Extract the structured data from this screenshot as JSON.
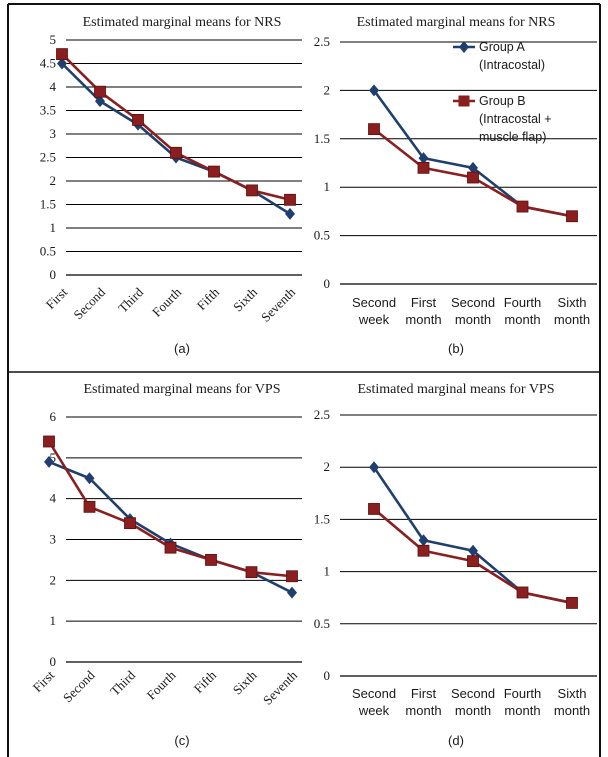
{
  "figure": {
    "panel_labels": [
      "(a)",
      "(b)",
      "(c)",
      "(d)"
    ]
  },
  "colors": {
    "group_a": "#1f3f6e",
    "group_b": "#8b1e1e",
    "grid": "#000000",
    "text": "#1a1a1a",
    "border": "#111111"
  },
  "chart_data": [
    {
      "type": "line",
      "title": "Estimated marginal means for NRS",
      "panel_label": "(a)",
      "categories": [
        "First",
        "Second",
        "Third",
        "Fourth",
        "Fifth",
        "Sixth",
        "Seventh"
      ],
      "series": [
        {
          "name": "Group A",
          "marker": "diamond",
          "values": [
            4.5,
            3.7,
            3.2,
            2.5,
            2.2,
            1.8,
            1.3
          ]
        },
        {
          "name": "Group B",
          "marker": "square",
          "values": [
            4.7,
            3.9,
            3.3,
            2.6,
            2.2,
            1.8,
            1.6
          ]
        }
      ],
      "ylim": [
        0,
        5
      ],
      "yticks": [
        "0",
        "0.5",
        "1",
        "1.5",
        "2",
        "2.5",
        "3",
        "3.5",
        "4",
        "4.5",
        "5"
      ],
      "grid": true,
      "legend": "none"
    },
    {
      "type": "line",
      "title": "Estimated marginal means for NRS",
      "panel_label": "(b)",
      "categories": [
        [
          "Second",
          "week"
        ],
        [
          "First",
          "month"
        ],
        [
          "Second",
          "month"
        ],
        [
          "Fourth",
          "month"
        ],
        [
          "Sixth",
          "month"
        ]
      ],
      "series": [
        {
          "name": "Group A",
          "marker": "diamond",
          "values": [
            2.0,
            1.3,
            1.2,
            0.8,
            0.7
          ]
        },
        {
          "name": "Group B",
          "marker": "square",
          "values": [
            1.6,
            1.2,
            1.1,
            0.8,
            0.7
          ]
        }
      ],
      "ylim": [
        0,
        2.5
      ],
      "yticks": [
        "0",
        "0.5",
        "1",
        "1.5",
        "2",
        "2.5"
      ],
      "grid": true,
      "legend": "top-right",
      "legend_entries": [
        {
          "series": 0,
          "lines": [
            "Group A",
            "(Intracostal)"
          ]
        },
        {
          "series": 1,
          "lines": [
            "Group B",
            "(Intracostal +",
            "muscle flap)"
          ]
        }
      ]
    },
    {
      "type": "line",
      "title": "Estimated marginal means for VPS",
      "panel_label": "(c)",
      "categories": [
        "First",
        "Second",
        "Third",
        "Fourth",
        "Fifth",
        "Sixth",
        "Seventh"
      ],
      "series": [
        {
          "name": "Group A",
          "marker": "diamond",
          "values": [
            4.9,
            4.5,
            3.5,
            2.9,
            2.5,
            2.2,
            1.7
          ]
        },
        {
          "name": "Group B",
          "marker": "square",
          "values": [
            5.4,
            3.8,
            3.4,
            2.8,
            2.5,
            2.2,
            2.1
          ]
        }
      ],
      "ylim": [
        0,
        6
      ],
      "yticks": [
        "0",
        "1",
        "2",
        "3",
        "4",
        "5",
        "6"
      ],
      "grid": true,
      "legend": "none"
    },
    {
      "type": "line",
      "title": "Estimated marginal means for VPS",
      "panel_label": "(d)",
      "categories": [
        [
          "Second",
          "week"
        ],
        [
          "First",
          "month"
        ],
        [
          "Second",
          "month"
        ],
        [
          "Fourth",
          "month"
        ],
        [
          "Sixth",
          "month"
        ]
      ],
      "series": [
        {
          "name": "Group A",
          "marker": "diamond",
          "values": [
            2.0,
            1.3,
            1.2,
            0.8,
            0.7
          ]
        },
        {
          "name": "Group B",
          "marker": "square",
          "values": [
            1.6,
            1.2,
            1.1,
            0.8,
            0.7
          ]
        }
      ],
      "ylim": [
        0,
        2.5
      ],
      "yticks": [
        "0",
        "0.5",
        "1",
        "1.5",
        "2",
        "2.5"
      ],
      "grid": true,
      "legend": "none"
    }
  ]
}
